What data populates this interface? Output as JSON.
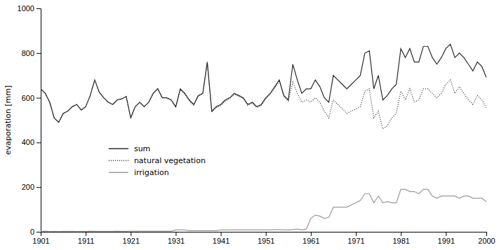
{
  "chart_data": {
    "type": "line",
    "ylabel": "evaporation [mm]",
    "x": [
      1901,
      1902,
      1903,
      1904,
      1905,
      1906,
      1907,
      1908,
      1909,
      1910,
      1911,
      1912,
      1913,
      1914,
      1915,
      1916,
      1917,
      1918,
      1919,
      1920,
      1921,
      1922,
      1923,
      1924,
      1925,
      1926,
      1927,
      1928,
      1929,
      1930,
      1931,
      1932,
      1933,
      1934,
      1935,
      1936,
      1937,
      1938,
      1939,
      1940,
      1941,
      1942,
      1943,
      1944,
      1945,
      1946,
      1947,
      1948,
      1949,
      1950,
      1951,
      1952,
      1953,
      1954,
      1955,
      1956,
      1957,
      1958,
      1959,
      1960,
      1961,
      1962,
      1963,
      1964,
      1965,
      1966,
      1967,
      1968,
      1969,
      1970,
      1971,
      1972,
      1973,
      1974,
      1975,
      1976,
      1977,
      1978,
      1979,
      1980,
      1981,
      1982,
      1983,
      1984,
      1985,
      1986,
      1987,
      1988,
      1989,
      1990,
      1991,
      1992,
      1993,
      1994,
      1995,
      1996,
      1997,
      1998,
      1999,
      2000
    ],
    "series": [
      {
        "name": "sum",
        "color": "#2a2a2a",
        "line_style": "solid",
        "values": [
          640,
          620,
          580,
          510,
          490,
          530,
          540,
          560,
          570,
          545,
          560,
          610,
          680,
          625,
          600,
          580,
          570,
          590,
          595,
          605,
          510,
          560,
          580,
          560,
          580,
          620,
          640,
          600,
          600,
          590,
          560,
          640,
          620,
          590,
          570,
          610,
          620,
          760,
          540,
          560,
          570,
          590,
          600,
          620,
          610,
          600,
          570,
          580,
          560,
          570,
          600,
          620,
          650,
          680,
          610,
          590,
          750,
          680,
          620,
          640,
          640,
          680,
          650,
          600,
          580,
          700,
          680,
          660,
          640,
          660,
          680,
          700,
          800,
          810,
          640,
          700,
          590,
          610,
          640,
          660,
          820,
          780,
          820,
          760,
          760,
          830,
          830,
          780,
          750,
          780,
          820,
          840,
          780,
          800,
          780,
          750,
          720,
          760,
          740,
          690
        ]
      },
      {
        "name": "natural vegetation",
        "color": "#2a2a2a",
        "line_style": "dotted",
        "values": [
          640,
          620,
          580,
          510,
          490,
          530,
          540,
          560,
          570,
          545,
          560,
          610,
          680,
          625,
          600,
          580,
          570,
          590,
          595,
          605,
          510,
          560,
          580,
          560,
          580,
          620,
          640,
          600,
          600,
          590,
          555,
          635,
          615,
          587,
          565,
          607,
          617,
          755,
          536,
          556,
          565,
          585,
          596,
          615,
          606,
          596,
          566,
          576,
          556,
          566,
          596,
          616,
          644,
          674,
          606,
          585,
          670,
          620,
          580,
          590,
          580,
          600,
          580,
          540,
          510,
          590,
          570,
          550,
          530,
          540,
          550,
          560,
          630,
          640,
          510,
          540,
          460,
          475,
          510,
          530,
          630,
          590,
          640,
          580,
          590,
          640,
          640,
          620,
          600,
          620,
          660,
          680,
          620,
          650,
          620,
          590,
          570,
          610,
          590,
          555
        ]
      },
      {
        "name": "irrigation",
        "color": "#999999",
        "line_style": "solid",
        "values": [
          2,
          3,
          1,
          2,
          1,
          2,
          2,
          2,
          1,
          2,
          2,
          3,
          2,
          2,
          2,
          2,
          2,
          3,
          2,
          2,
          3,
          3,
          3,
          3,
          3,
          3,
          3,
          3,
          3,
          3,
          8,
          8,
          8,
          5,
          5,
          5,
          5,
          5,
          5,
          5,
          8,
          8,
          8,
          8,
          8,
          8,
          8,
          8,
          8,
          8,
          8,
          8,
          10,
          10,
          8,
          8,
          10,
          12,
          8,
          12,
          60,
          75,
          70,
          60,
          65,
          110,
          110,
          110,
          110,
          120,
          130,
          140,
          170,
          170,
          130,
          160,
          130,
          135,
          130,
          130,
          190,
          190,
          180,
          180,
          170,
          190,
          190,
          160,
          150,
          160,
          160,
          160,
          160,
          150,
          160,
          160,
          150,
          150,
          150,
          135
        ]
      }
    ],
    "xlim": [
      1901,
      2000
    ],
    "xticks": [
      1901,
      1911,
      1921,
      1931,
      1941,
      1951,
      1961,
      1971,
      1981,
      1991,
      2000
    ],
    "ylim": [
      0,
      1000
    ],
    "yticks": [
      0,
      200,
      400,
      600,
      800,
      1000
    ],
    "grid": false,
    "legend": "lower left"
  }
}
